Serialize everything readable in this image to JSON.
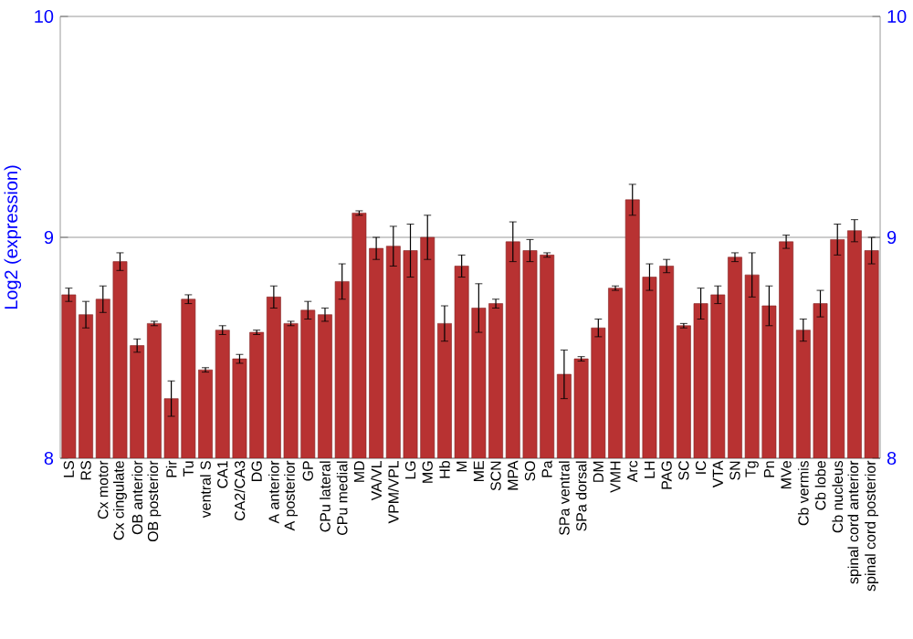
{
  "chart_data": {
    "type": "bar",
    "ylabel": "Log2 (expression)",
    "categories": [
      "LS",
      "RS",
      "Cx motor",
      "Cx cingulate",
      "OB anterior",
      "OB posterior",
      "Pir",
      "Tu",
      "ventral S",
      "CA1",
      "CA2/CA3",
      "DG",
      "A anterior",
      "A posterior",
      "GP",
      "CPu lateral",
      "CPu medial",
      "MD",
      "VA/VL",
      "VPM/VPL",
      "LG",
      "MG",
      "Hb",
      "M",
      "ME",
      "SCN",
      "MPA",
      "SO",
      "Pa",
      "SPa ventral",
      "SPa dorsal",
      "DM",
      "VMH",
      "Arc",
      "LH",
      "PAG",
      "SC",
      "IC",
      "VTA",
      "SN",
      "Tg",
      "Pn",
      "MVe",
      "Cb vermis",
      "Cb lobe",
      "Cb nucleus",
      "spinal cord anterior",
      "spinal cord posterior"
    ],
    "values": [
      8.74,
      8.65,
      8.72,
      8.89,
      8.51,
      8.61,
      8.27,
      8.72,
      8.4,
      8.58,
      8.45,
      8.57,
      8.73,
      8.61,
      8.67,
      8.65,
      8.8,
      9.11,
      8.95,
      8.96,
      8.94,
      9.0,
      8.61,
      8.87,
      8.68,
      8.7,
      8.98,
      8.94,
      8.92,
      8.38,
      8.45,
      8.59,
      8.77,
      9.17,
      8.82,
      8.87,
      8.6,
      8.7,
      8.74,
      8.91,
      8.83,
      8.69,
      8.98,
      8.58,
      8.7,
      8.99,
      9.03,
      8.94
    ],
    "errors": [
      0.03,
      0.06,
      0.06,
      0.04,
      0.03,
      0.01,
      0.08,
      0.02,
      0.01,
      0.02,
      0.02,
      0.01,
      0.05,
      0.01,
      0.04,
      0.03,
      0.08,
      0.01,
      0.05,
      0.09,
      0.12,
      0.1,
      0.08,
      0.05,
      0.11,
      0.02,
      0.09,
      0.05,
      0.01,
      0.11,
      0.01,
      0.04,
      0.01,
      0.07,
      0.06,
      0.03,
      0.01,
      0.07,
      0.04,
      0.02,
      0.1,
      0.09,
      0.03,
      0.05,
      0.06,
      0.07,
      0.05,
      0.06
    ],
    "color": "#b83232",
    "ylim": [
      8,
      10
    ],
    "yticks": [
      8,
      9,
      10
    ],
    "y2lim": [
      8,
      10
    ],
    "y2ticks": [
      8,
      9,
      10
    ],
    "grid": "y"
  }
}
